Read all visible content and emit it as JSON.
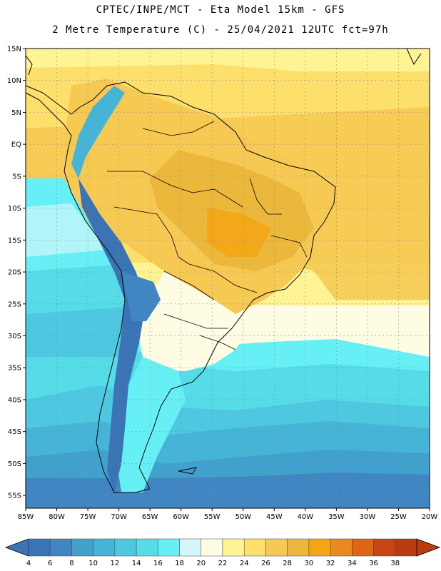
{
  "header": {
    "line1": "CPTEC/INPE/MCT -  Eta Model 15km - GFS",
    "line2": "2 Metre Temperature (C) - 25/04/2021 12UTC fct=97h"
  },
  "map": {
    "lat_labels": [
      "15N",
      "10N",
      "5N",
      "EQ",
      "5S",
      "10S",
      "15S",
      "20S",
      "25S",
      "30S",
      "35S",
      "40S",
      "45S",
      "50S",
      "55S"
    ],
    "lon_labels": [
      "85W",
      "80W",
      "75W",
      "70W",
      "65W",
      "60W",
      "55W",
      "50W",
      "45W",
      "40W",
      "35W",
      "30W",
      "25W",
      "20W"
    ],
    "lat_range": [
      15,
      -57
    ],
    "lon_range": [
      -85,
      -20
    ]
  },
  "legend": {
    "values": [
      "4",
      "6",
      "8",
      "10",
      "12",
      "14",
      "16",
      "18",
      "20",
      "22",
      "24",
      "26",
      "28",
      "30",
      "32",
      "34",
      "36",
      "38"
    ],
    "colors": [
      "#3a74b4",
      "#3f86c2",
      "#41a0cc",
      "#46b4d6",
      "#4ec8e0",
      "#55dce8",
      "#66f0f6",
      "#d2f6fa",
      "#fffce4",
      "#fff494",
      "#fde06c",
      "#f6ca52",
      "#ecb83c",
      "#f4a414",
      "#ea8a1e",
      "#dc6614",
      "#c84410",
      "#b83c10"
    ],
    "low_arrow_color": "#3a74b4",
    "high_arrow_color": "#b83c10"
  }
}
